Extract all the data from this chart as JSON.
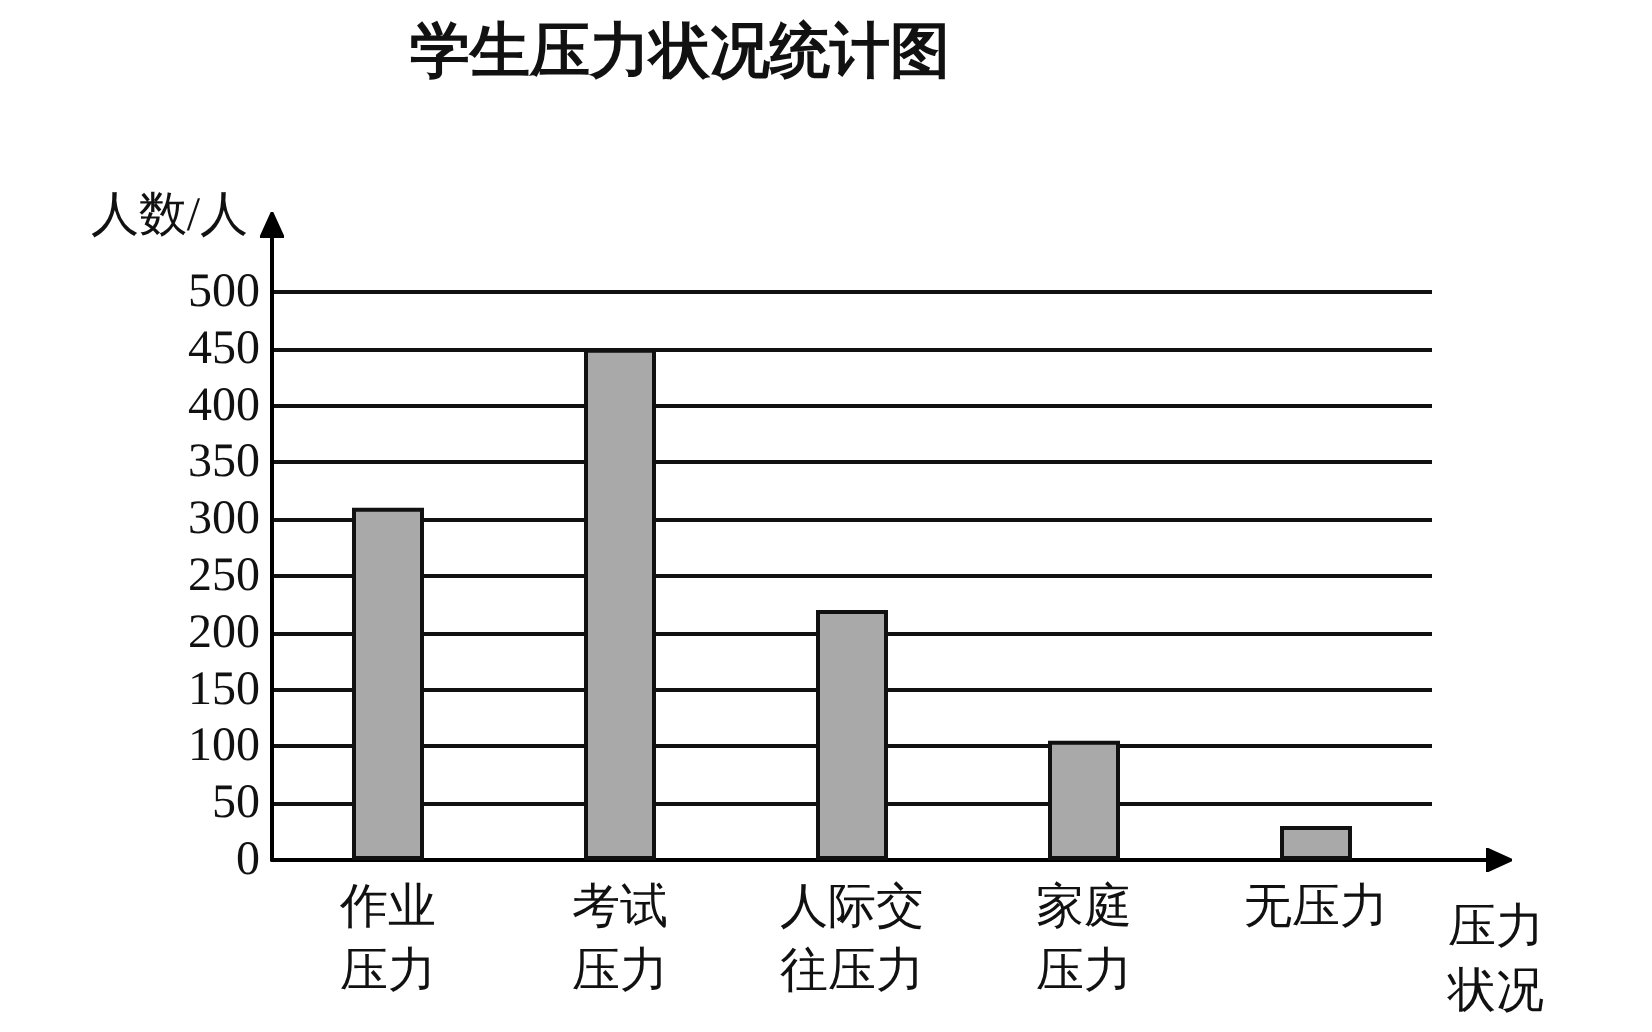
{
  "chart_data": {
    "type": "bar",
    "title": "学生压力状况统计图",
    "xlabel": "压力状况",
    "ylabel": "人数/人",
    "categories": [
      "作业压力",
      "考试压力",
      "人际交往压力",
      "家庭压力",
      "无压力"
    ],
    "values": [
      310,
      450,
      220,
      105,
      30
    ],
    "color": "#a9a9a9",
    "ylim": [
      0,
      500
    ],
    "yticks": [
      0,
      50,
      100,
      150,
      200,
      250,
      300,
      350,
      400,
      450,
      500
    ],
    "grid": "y"
  }
}
